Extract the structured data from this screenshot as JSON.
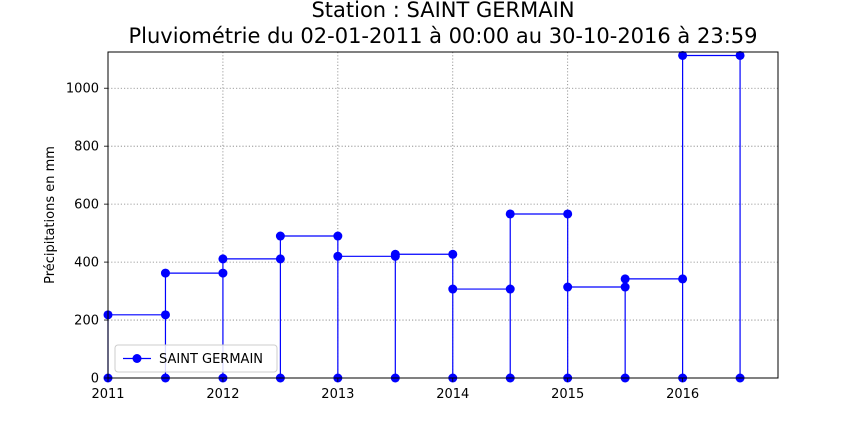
{
  "chart_data": {
    "type": "line",
    "title": "Station : SAINT GERMAIN",
    "subtitle": "Pluviométrie du 02-01-2011 à 00:00 au 30-10-2016 à 23:59",
    "xlabel": "",
    "ylabel": "Précipitations en mm",
    "xlim": [
      2011.0,
      2016.83
    ],
    "ylim": [
      0,
      1125
    ],
    "x_ticks": [
      "2011",
      "2012",
      "2013",
      "2014",
      "2015",
      "2016"
    ],
    "y_ticks": [
      "0",
      "200",
      "400",
      "600",
      "800",
      "1000"
    ],
    "grid": true,
    "legend_position": "lower-left",
    "series": [
      {
        "name": "SAINT GERMAIN",
        "color": "#0000ff",
        "marker": "circle",
        "periods": [
          {
            "start": 2011.0,
            "end": 2011.5,
            "value": 218
          },
          {
            "start": 2011.5,
            "end": 2012.0,
            "value": 362
          },
          {
            "start": 2012.0,
            "end": 2012.5,
            "value": 411
          },
          {
            "start": 2012.5,
            "end": 2013.0,
            "value": 490
          },
          {
            "start": 2013.0,
            "end": 2013.5,
            "value": 420
          },
          {
            "start": 2013.5,
            "end": 2014.0,
            "value": 427
          },
          {
            "start": 2014.0,
            "end": 2014.5,
            "value": 307
          },
          {
            "start": 2014.5,
            "end": 2015.0,
            "value": 566
          },
          {
            "start": 2015.0,
            "end": 2015.5,
            "value": 314
          },
          {
            "start": 2015.5,
            "end": 2016.0,
            "value": 342
          },
          {
            "start": 2016.0,
            "end": 2016.5,
            "value": 1113
          }
        ],
        "final_drop": 2016.5
      }
    ]
  }
}
